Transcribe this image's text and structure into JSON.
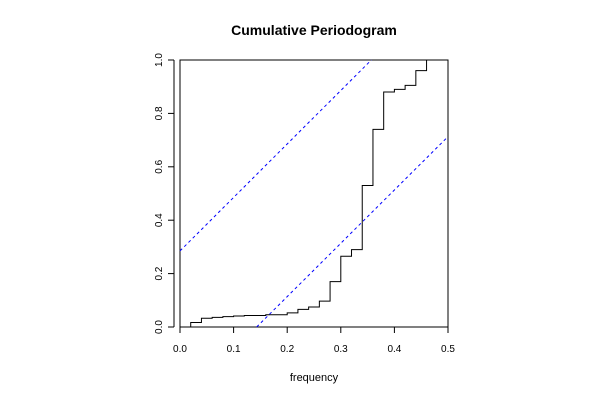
{
  "chart_data": {
    "type": "line",
    "title": "Cumulative Periodogram",
    "xlabel": "frequency",
    "ylabel": "",
    "xlim": [
      0.0,
      0.5
    ],
    "ylim": [
      0.0,
      1.0
    ],
    "x_ticks": [
      "0.0",
      "0.1",
      "0.2",
      "0.3",
      "0.4",
      "0.5"
    ],
    "y_ticks": [
      "0.0",
      "0.2",
      "0.4",
      "0.6",
      "0.8",
      "1.0"
    ],
    "grid": false,
    "series": [
      {
        "style": "step",
        "color": "#000000",
        "points": [
          [
            0.02,
            0.0
          ],
          [
            0.02,
            0.017
          ],
          [
            0.04,
            0.017
          ],
          [
            0.04,
            0.033
          ],
          [
            0.06,
            0.033
          ],
          [
            0.06,
            0.036
          ],
          [
            0.08,
            0.036
          ],
          [
            0.08,
            0.039
          ],
          [
            0.1,
            0.039
          ],
          [
            0.1,
            0.041
          ],
          [
            0.12,
            0.041
          ],
          [
            0.12,
            0.043
          ],
          [
            0.16,
            0.043
          ],
          [
            0.16,
            0.046
          ],
          [
            0.2,
            0.046
          ],
          [
            0.2,
            0.053
          ],
          [
            0.22,
            0.053
          ],
          [
            0.22,
            0.066
          ],
          [
            0.24,
            0.066
          ],
          [
            0.24,
            0.075
          ],
          [
            0.26,
            0.075
          ],
          [
            0.26,
            0.097
          ],
          [
            0.28,
            0.097
          ],
          [
            0.28,
            0.17
          ],
          [
            0.3,
            0.17
          ],
          [
            0.3,
            0.265
          ],
          [
            0.32,
            0.265
          ],
          [
            0.32,
            0.29
          ],
          [
            0.34,
            0.29
          ],
          [
            0.34,
            0.53
          ],
          [
            0.36,
            0.53
          ],
          [
            0.36,
            0.74
          ],
          [
            0.38,
            0.74
          ],
          [
            0.38,
            0.88
          ],
          [
            0.4,
            0.88
          ],
          [
            0.4,
            0.89
          ],
          [
            0.42,
            0.89
          ],
          [
            0.42,
            0.905
          ],
          [
            0.44,
            0.905
          ],
          [
            0.44,
            0.96
          ],
          [
            0.46,
            0.96
          ],
          [
            0.46,
            1.0
          ],
          [
            0.48,
            1.0
          ]
        ]
      },
      {
        "style": "dashed",
        "color": "#0000ff",
        "points": [
          [
            0.0,
            0.285
          ],
          [
            0.357,
            1.0
          ]
        ]
      },
      {
        "style": "dashed",
        "color": "#0000ff",
        "points": [
          [
            0.143,
            0.0
          ],
          [
            0.5,
            0.713
          ]
        ]
      }
    ]
  }
}
